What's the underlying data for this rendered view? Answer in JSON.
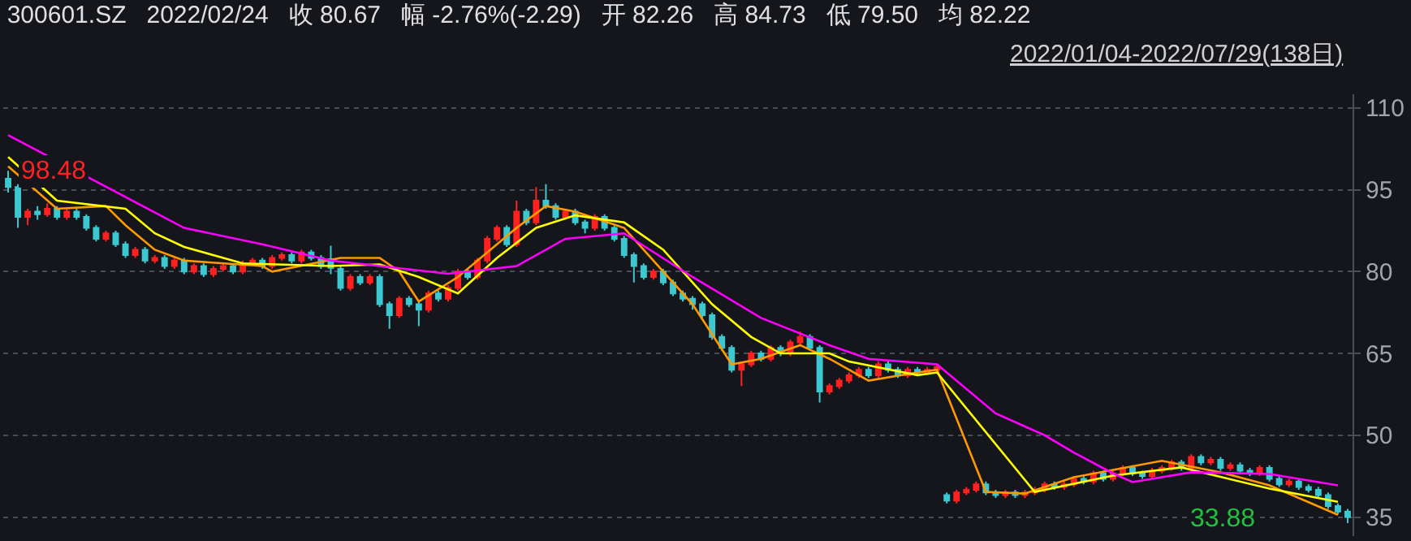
{
  "chart_data": {
    "type": "candlestick",
    "title": "300601.SZ   2022/02/24   收 80.67   幅 -2.76%(-2.29)   开 82.26   高 84.73   低 79.50   均 82.22",
    "subtitle": "2022/01/04-2022/07/29(138日)",
    "categories": [
      null,
      null,
      null,
      null,
      null,
      null,
      null,
      null,
      null,
      null,
      null,
      null,
      null,
      null,
      null,
      null,
      null,
      null,
      null,
      null,
      null,
      null,
      null,
      null,
      null,
      null,
      null,
      null,
      null,
      null,
      null,
      null,
      null,
      null,
      null,
      null,
      null,
      null,
      null,
      null,
      null,
      null,
      null,
      null,
      null,
      null,
      null,
      null,
      null,
      null,
      null,
      null,
      null,
      null,
      null,
      null,
      null,
      null,
      null,
      null,
      null,
      null,
      null,
      null,
      null,
      null,
      null,
      null,
      null,
      null,
      null,
      null,
      null,
      null,
      null,
      null,
      null,
      null,
      null,
      null,
      null,
      null,
      null,
      null,
      null,
      null,
      null,
      null,
      null,
      null,
      null,
      null,
      null,
      null,
      null,
      null,
      null,
      null,
      null,
      null,
      null,
      null,
      null,
      null,
      null,
      null,
      null,
      null,
      null,
      null,
      null,
      null,
      null,
      null,
      null,
      null,
      null,
      null,
      null,
      null,
      null,
      null,
      null,
      null,
      null,
      null,
      null,
      null,
      null,
      null,
      null,
      null,
      null,
      null,
      null,
      null,
      null,
      null
    ],
    "ohlc": [
      [
        97,
        98.48,
        94.5,
        95.5
      ],
      [
        95.5,
        96,
        88,
        90
      ],
      [
        90,
        91.5,
        88.5,
        91
      ],
      [
        91,
        92,
        89.5,
        90.5
      ],
      [
        90.5,
        92.5,
        90,
        91.5
      ],
      [
        91.5,
        92,
        89.5,
        90
      ],
      [
        90,
        91.5,
        89.5,
        91
      ],
      [
        91,
        91.5,
        89.5,
        90
      ],
      [
        90,
        90.5,
        87.5,
        88
      ],
      [
        88,
        88.5,
        85.5,
        86
      ],
      [
        86,
        87.5,
        85.5,
        87
      ],
      [
        87,
        87.5,
        84.5,
        85
      ],
      [
        85,
        85.5,
        82.5,
        83
      ],
      [
        83,
        84.5,
        82.5,
        84
      ],
      [
        84,
        84.5,
        81.5,
        82
      ],
      [
        82,
        83,
        81.5,
        82.5
      ],
      [
        82.5,
        83,
        80.5,
        81
      ],
      [
        81,
        82.5,
        80.5,
        82
      ],
      [
        82,
        82.5,
        79.5,
        80
      ],
      [
        80,
        81.5,
        79.5,
        81
      ],
      [
        81,
        81.5,
        79,
        79.5
      ],
      [
        79.5,
        81,
        79,
        80.5
      ],
      [
        80.5,
        81.5,
        80,
        81
      ],
      [
        81,
        81.5,
        79.5,
        80
      ],
      [
        80,
        82,
        79.5,
        81.5
      ],
      [
        81.5,
        82.5,
        81,
        82
      ],
      [
        82,
        82.5,
        80.5,
        81
      ],
      [
        81,
        83,
        80.5,
        82.5
      ],
      [
        82.5,
        83.5,
        82,
        83
      ],
      [
        83,
        83.5,
        81.5,
        82
      ],
      [
        82,
        84,
        81.5,
        83.5
      ],
      [
        83.5,
        84,
        82,
        82.5
      ],
      [
        82.5,
        83,
        80.5,
        81
      ],
      [
        82.26,
        84.73,
        79.5,
        80.67
      ],
      [
        80.5,
        81,
        76.5,
        77
      ],
      [
        77,
        79.5,
        76.5,
        79
      ],
      [
        79,
        79.5,
        77.5,
        78
      ],
      [
        78,
        79.5,
        77.5,
        79
      ],
      [
        79,
        79.5,
        73.5,
        74
      ],
      [
        74,
        74.5,
        69.5,
        72
      ],
      [
        72,
        75.5,
        71.5,
        75
      ],
      [
        75,
        75.5,
        73.5,
        74
      ],
      [
        74,
        74.5,
        70,
        73
      ],
      [
        73,
        76.5,
        72.5,
        76
      ],
      [
        76,
        76.5,
        74.5,
        75
      ],
      [
        75,
        77.5,
        74.5,
        77
      ],
      [
        77,
        80.5,
        76.5,
        80
      ],
      [
        80,
        80.5,
        78.5,
        79
      ],
      [
        79,
        82.5,
        78.5,
        82
      ],
      [
        82,
        86.5,
        81.5,
        86
      ],
      [
        86,
        88.5,
        85.5,
        88
      ],
      [
        88,
        88.5,
        84.5,
        85
      ],
      [
        85,
        93,
        84.5,
        91
      ],
      [
        91,
        91.5,
        88.5,
        89
      ],
      [
        89,
        95.5,
        88.5,
        93
      ],
      [
        93,
        96,
        91.5,
        92
      ],
      [
        92,
        92.5,
        89.5,
        90
      ],
      [
        90,
        91.5,
        89.5,
        91
      ],
      [
        91,
        91.5,
        88.5,
        89
      ],
      [
        89,
        89.5,
        87,
        88
      ],
      [
        88,
        90.5,
        87.5,
        90
      ],
      [
        90,
        90.5,
        87.5,
        88
      ],
      [
        88,
        88.5,
        85.5,
        86
      ],
      [
        86,
        86.5,
        82.5,
        83
      ],
      [
        83,
        83.5,
        78,
        81
      ],
      [
        81,
        81.5,
        78.5,
        79
      ],
      [
        79,
        80.5,
        78.5,
        80
      ],
      [
        80,
        80.5,
        77.5,
        78
      ],
      [
        78,
        78.5,
        75.5,
        76
      ],
      [
        76,
        76.5,
        74.5,
        75
      ],
      [
        75,
        75.5,
        73,
        74
      ],
      [
        74,
        74.5,
        71.5,
        72
      ],
      [
        72,
        72.5,
        67.5,
        68
      ],
      [
        68,
        68.5,
        65.5,
        66
      ],
      [
        66,
        66.5,
        61.5,
        62
      ],
      [
        62,
        63.5,
        59,
        63
      ],
      [
        63,
        65.5,
        62.5,
        65
      ],
      [
        65,
        65.5,
        63.5,
        64
      ],
      [
        64,
        66.5,
        63.5,
        66
      ],
      [
        66,
        66.5,
        64.5,
        65
      ],
      [
        65,
        67.5,
        64.5,
        67
      ],
      [
        67,
        69,
        66.5,
        68
      ],
      [
        68,
        68.5,
        65.5,
        66
      ],
      [
        66,
        66.5,
        56,
        58
      ],
      [
        58,
        59.5,
        57.5,
        59
      ],
      [
        59,
        60.5,
        58.5,
        60
      ],
      [
        60,
        61.5,
        59.5,
        61
      ],
      [
        61,
        62.5,
        60.5,
        62
      ],
      [
        62,
        62.5,
        60.5,
        61
      ],
      [
        61,
        63.5,
        60.5,
        63
      ],
      [
        63,
        63.5,
        61.5,
        62
      ],
      [
        62,
        62.5,
        60.5,
        61
      ],
      [
        61,
        62.5,
        60.5,
        62
      ],
      [
        62,
        62.5,
        61,
        61.5
      ],
      [
        61.5,
        62.5,
        61,
        62
      ],
      [
        62,
        63,
        61.5,
        62.5
      ],
      [
        39,
        39.5,
        37.5,
        38
      ],
      [
        38,
        40,
        37.5,
        39.5
      ],
      [
        39.5,
        40.5,
        39,
        40
      ],
      [
        40,
        41.5,
        39.5,
        41
      ],
      [
        41,
        41.5,
        39,
        39.5
      ],
      [
        39.5,
        40,
        38.5,
        39
      ],
      [
        39,
        40,
        38.5,
        39.5
      ],
      [
        39.5,
        40,
        38.5,
        39
      ],
      [
        39,
        40,
        38.5,
        39.5
      ],
      [
        39.5,
        40.5,
        39,
        40
      ],
      [
        40,
        41.5,
        39.5,
        41
      ],
      [
        41,
        41.5,
        40,
        40.5
      ],
      [
        40.5,
        41.5,
        40,
        41
      ],
      [
        41,
        42.5,
        40.5,
        42
      ],
      [
        42,
        42.5,
        41,
        41.5
      ],
      [
        41.5,
        43.5,
        41,
        43
      ],
      [
        43,
        43.5,
        41.5,
        42
      ],
      [
        42,
        43.5,
        41.5,
        43
      ],
      [
        43,
        44.5,
        42.5,
        44
      ],
      [
        44,
        44.5,
        42.5,
        43
      ],
      [
        43,
        43.5,
        42,
        42.5
      ],
      [
        42.5,
        44,
        42,
        43.5
      ],
      [
        43.5,
        44.5,
        43,
        44
      ],
      [
        44,
        45.5,
        43.5,
        45
      ],
      [
        45,
        45.5,
        43.5,
        44
      ],
      [
        44,
        46.5,
        43.5,
        46
      ],
      [
        46,
        46.5,
        44.5,
        45
      ],
      [
        45,
        46,
        44.5,
        45.5
      ],
      [
        45.5,
        46,
        43.5,
        44
      ],
      [
        44,
        45,
        43.5,
        44.5
      ],
      [
        44.5,
        45,
        43,
        43.5
      ],
      [
        43.5,
        44,
        42.5,
        43
      ],
      [
        43,
        44.5,
        42.5,
        44
      ],
      [
        44,
        44.5,
        41.5,
        42
      ],
      [
        42,
        42.5,
        40.5,
        41
      ],
      [
        41,
        42,
        40.5,
        41.5
      ],
      [
        41.5,
        42,
        40,
        40.5
      ],
      [
        40.5,
        41,
        39.5,
        40
      ],
      [
        40,
        40.5,
        38.5,
        39
      ],
      [
        39,
        39.5,
        36.5,
        37
      ],
      [
        37,
        37.5,
        35.5,
        36
      ],
      [
        36,
        36.5,
        33.88,
        35
      ]
    ],
    "colors": [
      "#3cc8d0",
      "#3cc8d0",
      "#ff2020",
      "#3cc8d0",
      "#ff2020",
      "#3cc8d0",
      "#ff2020",
      "#3cc8d0",
      "#3cc8d0",
      "#3cc8d0",
      "#ff2020",
      "#3cc8d0",
      "#3cc8d0",
      "#ff2020",
      "#3cc8d0",
      "#ff2020",
      "#3cc8d0",
      "#ff2020",
      "#3cc8d0",
      "#ff2020",
      "#3cc8d0",
      "#ff2020",
      "#ff2020",
      "#3cc8d0",
      "#ff2020",
      "#ff2020",
      "#3cc8d0",
      "#ff2020",
      "#ff2020",
      "#3cc8d0",
      "#ff2020",
      "#3cc8d0",
      "#3cc8d0",
      "#3cc8d0",
      "#3cc8d0",
      "#ff2020",
      "#3cc8d0",
      "#ff2020",
      "#3cc8d0",
      "#3cc8d0",
      "#ff2020",
      "#3cc8d0",
      "#3cc8d0",
      "#ff2020",
      "#3cc8d0",
      "#ff2020",
      "#ff2020",
      "#3cc8d0",
      "#ff2020",
      "#ff2020",
      "#ff2020",
      "#3cc8d0",
      "#ff2020",
      "#3cc8d0",
      "#ff2020",
      "#3cc8d0",
      "#3cc8d0",
      "#ff2020",
      "#3cc8d0",
      "#3cc8d0",
      "#ff2020",
      "#3cc8d0",
      "#3cc8d0",
      "#3cc8d0",
      "#3cc8d0",
      "#3cc8d0",
      "#ff2020",
      "#3cc8d0",
      "#3cc8d0",
      "#3cc8d0",
      "#3cc8d0",
      "#3cc8d0",
      "#3cc8d0",
      "#3cc8d0",
      "#3cc8d0",
      "#ff2020",
      "#ff2020",
      "#3cc8d0",
      "#ff2020",
      "#3cc8d0",
      "#ff2020",
      "#ff2020",
      "#3cc8d0",
      "#3cc8d0",
      "#ff2020",
      "#ff2020",
      "#ff2020",
      "#ff2020",
      "#3cc8d0",
      "#ff2020",
      "#3cc8d0",
      "#3cc8d0",
      "#ff2020",
      "#3cc8d0",
      "#ff2020",
      "#ff2020",
      "#3cc8d0",
      "#ff2020",
      "#ff2020",
      "#ff2020",
      "#3cc8d0",
      "#3cc8d0",
      "#ff2020",
      "#3cc8d0",
      "#ff2020",
      "#ff2020",
      "#ff2020",
      "#3cc8d0",
      "#ff2020",
      "#ff2020",
      "#3cc8d0",
      "#ff2020",
      "#3cc8d0",
      "#ff2020",
      "#ff2020",
      "#3cc8d0",
      "#3cc8d0",
      "#ff2020",
      "#ff2020",
      "#ff2020",
      "#3cc8d0",
      "#ff2020",
      "#3cc8d0",
      "#ff2020",
      "#3cc8d0",
      "#ff2020",
      "#3cc8d0",
      "#3cc8d0",
      "#ff2020",
      "#3cc8d0",
      "#3cc8d0",
      "#ff2020",
      "#3cc8d0",
      "#3cc8d0",
      "#3cc8d0",
      "#3cc8d0",
      "#3cc8d0",
      "#3cc8d0"
    ],
    "series": [
      {
        "type": "line",
        "color": "#ff9900",
        "values": [
          99.3,
          null,
          null,
          null,
          null,
          91.5,
          null,
          null,
          null,
          null,
          92,
          null,
          88.5,
          null,
          null,
          84,
          null,
          null,
          82,
          null,
          null,
          null,
          null,
          null,
          null,
          null,
          81,
          80,
          null,
          null,
          null,
          null,
          null,
          null,
          82.5,
          null,
          null,
          null,
          82.5,
          null,
          80,
          null,
          74.5,
          null,
          null,
          null,
          79,
          null,
          null,
          null,
          null,
          null,
          88,
          null,
          null,
          92,
          null,
          null,
          91,
          null,
          null,
          null,
          null,
          88,
          null,
          null,
          null,
          null,
          null,
          null,
          74,
          null,
          null,
          null,
          63,
          null,
          null,
          64,
          null,
          null,
          null,
          66.5,
          null,
          null,
          64,
          null,
          null,
          null,
          60,
          null,
          null,
          null,
          null,
          61.5,
          null,
          62,
          null,
          null,
          null,
          null,
          39.6,
          null,
          null,
          null,
          39.3,
          null,
          null,
          null,
          null,
          42.3,
          null,
          null,
          null,
          null,
          null,
          null,
          null,
          null,
          45.3,
          null,
          null,
          null,
          null,
          null,
          43.2,
          null,
          null,
          null,
          null,
          40.8,
          null,
          null,
          null,
          null,
          null,
          null,
          35.4,
          null
        ]
      },
      {
        "type": "line",
        "color": "#ffff00",
        "values": [
          101,
          null,
          null,
          null,
          null,
          93,
          null,
          null,
          null,
          null,
          null,
          null,
          91.5,
          null,
          null,
          87,
          null,
          null,
          84.5,
          null,
          null,
          null,
          null,
          null,
          81.5,
          null,
          null,
          null,
          null,
          null,
          null,
          null,
          null,
          81,
          null,
          null,
          null,
          null,
          81.3,
          null,
          null,
          null,
          79,
          null,
          null,
          null,
          76,
          null,
          null,
          null,
          82.5,
          null,
          null,
          null,
          88,
          null,
          null,
          null,
          90.3,
          null,
          null,
          null,
          null,
          89,
          null,
          null,
          null,
          84,
          null,
          null,
          null,
          null,
          74,
          null,
          null,
          null,
          68,
          null,
          null,
          65,
          null,
          null,
          null,
          null,
          65,
          null,
          63.5,
          null,
          null,
          null,
          null,
          null,
          null,
          61,
          null,
          61.5,
          null,
          null,
          null,
          null,
          null,
          null,
          null,
          null,
          null,
          39.6,
          null,
          null,
          null,
          null,
          null,
          null,
          null,
          42.6,
          null,
          null,
          null,
          null,
          null,
          null,
          44.1,
          null,
          null,
          null,
          null,
          null,
          null,
          null,
          null,
          40.2,
          null,
          null,
          null,
          null,
          null,
          null,
          37.8,
          null
        ]
      },
      {
        "type": "line",
        "color": "#ff00ff",
        "values": [
          105,
          null,
          null,
          null,
          null,
          null,
          null,
          null,
          null,
          null,
          null,
          null,
          null,
          null,
          null,
          null,
          null,
          null,
          88,
          null,
          null,
          null,
          null,
          null,
          null,
          null,
          85,
          null,
          null,
          null,
          null,
          null,
          null,
          82,
          null,
          null,
          null,
          null,
          null,
          null,
          null,
          null,
          null,
          null,
          null,
          79.6,
          null,
          null,
          null,
          null,
          null,
          null,
          81,
          null,
          null,
          null,
          null,
          86,
          null,
          null,
          null,
          null,
          null,
          87,
          null,
          null,
          null,
          null,
          null,
          null,
          79,
          null,
          null,
          null,
          null,
          null,
          null,
          71.5,
          null,
          null,
          null,
          null,
          null,
          null,
          66.5,
          null,
          null,
          null,
          64,
          null,
          null,
          null,
          null,
          null,
          null,
          63,
          null,
          null,
          null,
          null,
          null,
          54,
          null,
          null,
          null,
          null,
          50,
          null,
          null,
          46.8,
          null,
          null,
          null,
          43,
          null,
          41.4,
          null,
          null,
          null,
          null,
          null,
          43.2,
          null,
          null,
          null,
          null,
          null,
          null,
          null,
          42.9,
          null,
          null,
          null,
          null,
          null,
          null,
          40.8,
          null
        ]
      }
    ],
    "annotations": [
      {
        "text": "98.48",
        "y": 98.48
      },
      "33.88"
    ],
    "ylim": [
      31.5,
      112.5
    ],
    "yticks": [
      35,
      50,
      65,
      80,
      95,
      110
    ],
    "grid": "y",
    "marker": "none",
    "line_style": "solid"
  }
}
